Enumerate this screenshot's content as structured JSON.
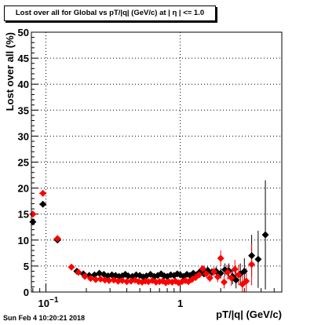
{
  "header": {
    "title": "Lost over all for Global vs pT/|q| (GeV/c) at |  η | <= 1.0"
  },
  "footer": {
    "timestamp": "Sun Feb  4 10:20:21 2018"
  },
  "colors": {
    "series_black": "#000000",
    "series_red": "#ff0000",
    "grid": "#000000",
    "frame": "#000000"
  },
  "chart_data": {
    "type": "scatter",
    "xlabel": "pT/|q| (GeV/c)",
    "ylabel": "Lost over all (%)",
    "xscale": "log",
    "xlim": [
      0.078,
      5.7
    ],
    "ylim": [
      0,
      50
    ],
    "grid": true,
    "x_ticks": [
      {
        "value": 0.1,
        "base": "10",
        "exp": "−1"
      },
      {
        "value": 1,
        "label": "1"
      }
    ],
    "y_ticks": [
      0,
      5,
      10,
      15,
      20,
      25,
      30,
      35,
      40,
      45,
      50
    ],
    "series": [
      {
        "color": "black",
        "points": [
          {
            "x": 0.08,
            "y": 13.5,
            "xerr": 0.003,
            "yerr": 0.5
          },
          {
            "x": 0.095,
            "y": 16.9,
            "xerr": 0.006,
            "yerr": 0.5
          },
          {
            "x": 0.122,
            "y": 10.0,
            "xerr": 0.008,
            "yerr": 0.4
          },
          {
            "x": 0.17,
            "y": 4.0,
            "yerr": 0.3
          },
          {
            "x": 0.19,
            "y": 3.5,
            "yerr": 0.3
          },
          {
            "x": 0.21,
            "y": 3.2,
            "yerr": 0.3
          },
          {
            "x": 0.23,
            "y": 3.3,
            "yerr": 0.3
          },
          {
            "x": 0.25,
            "y": 3.6,
            "yerr": 0.3
          },
          {
            "x": 0.27,
            "y": 3.4,
            "yerr": 0.3
          },
          {
            "x": 0.29,
            "y": 3.1,
            "yerr": 0.3
          },
          {
            "x": 0.31,
            "y": 3.3,
            "yerr": 0.3
          },
          {
            "x": 0.33,
            "y": 3.2,
            "yerr": 0.3
          },
          {
            "x": 0.35,
            "y": 3.0,
            "yerr": 0.3
          },
          {
            "x": 0.37,
            "y": 3.1,
            "yerr": 0.3
          },
          {
            "x": 0.39,
            "y": 3.4,
            "yerr": 0.3
          },
          {
            "x": 0.41,
            "y": 3.1,
            "yerr": 0.3
          },
          {
            "x": 0.44,
            "y": 3.0,
            "yerr": 0.3
          },
          {
            "x": 0.47,
            "y": 3.3,
            "yerr": 0.3
          },
          {
            "x": 0.5,
            "y": 3.2,
            "yerr": 0.3
          },
          {
            "x": 0.53,
            "y": 2.9,
            "yerr": 0.3
          },
          {
            "x": 0.56,
            "y": 3.1,
            "yerr": 0.3
          },
          {
            "x": 0.6,
            "y": 3.4,
            "yerr": 0.3
          },
          {
            "x": 0.64,
            "y": 3.0,
            "yerr": 0.3
          },
          {
            "x": 0.68,
            "y": 3.2,
            "yerr": 0.3
          },
          {
            "x": 0.72,
            "y": 3.5,
            "yerr": 0.3
          },
          {
            "x": 0.76,
            "y": 3.1,
            "yerr": 0.3
          },
          {
            "x": 0.8,
            "y": 3.0,
            "yerr": 0.3
          },
          {
            "x": 0.85,
            "y": 3.3,
            "yerr": 0.3
          },
          {
            "x": 0.9,
            "y": 3.2,
            "yerr": 0.3
          },
          {
            "x": 0.95,
            "y": 3.5,
            "yerr": 0.3
          },
          {
            "x": 1.0,
            "y": 3.3,
            "yerr": 0.4
          },
          {
            "x": 1.06,
            "y": 3.0,
            "yerr": 0.4
          },
          {
            "x": 1.12,
            "y": 3.4,
            "yerr": 0.4
          },
          {
            "x": 1.18,
            "y": 3.2,
            "yerr": 0.4
          },
          {
            "x": 1.25,
            "y": 3.6,
            "yerr": 0.4
          },
          {
            "x": 1.32,
            "y": 3.3,
            "yerr": 0.5
          },
          {
            "x": 1.4,
            "y": 3.9,
            "yerr": 0.5
          },
          {
            "x": 1.5,
            "y": 3.5,
            "yerr": 0.6
          },
          {
            "x": 1.6,
            "y": 4.2,
            "yerr": 0.7
          },
          {
            "x": 1.72,
            "y": 3.8,
            "yerr": 0.8
          },
          {
            "x": 1.85,
            "y": 4.0,
            "yerr": 0.9
          },
          {
            "x": 2.0,
            "y": 3.6,
            "yerr": 1.0
          },
          {
            "x": 2.15,
            "y": 4.3,
            "yerr": 1.2
          },
          {
            "x": 2.3,
            "y": 4.1,
            "yerr": 1.4
          },
          {
            "x": 2.45,
            "y": 3.0,
            "yerr": 1.5
          },
          {
            "x": 2.6,
            "y": 2.3,
            "yerr": 1.6
          },
          {
            "x": 2.8,
            "y": 3.5,
            "yerr": 2.0
          },
          {
            "x": 3.0,
            "y": 4.0,
            "yerr": 2.5
          },
          {
            "x": 3.4,
            "y": 7.0,
            "yerr": 4.0
          },
          {
            "x": 3.8,
            "y": 6.3,
            "yerr": 5.5
          },
          {
            "x": 4.3,
            "y": 11.0,
            "yerr": 10.5
          }
        ]
      },
      {
        "color": "red",
        "points": [
          {
            "x": 0.08,
            "y": 15.0,
            "xerr": 0.003,
            "yerr": 0.5
          },
          {
            "x": 0.095,
            "y": 19.0,
            "xerr": 0.006,
            "yerr": 0.5
          },
          {
            "x": 0.122,
            "y": 10.3,
            "xerr": 0.008,
            "yerr": 0.4
          },
          {
            "x": 0.155,
            "y": 4.8,
            "yerr": 0.3
          },
          {
            "x": 0.175,
            "y": 3.8,
            "yerr": 0.3
          },
          {
            "x": 0.195,
            "y": 3.0,
            "yerr": 0.3
          },
          {
            "x": 0.215,
            "y": 2.6,
            "yerr": 0.3
          },
          {
            "x": 0.235,
            "y": 2.4,
            "yerr": 0.3
          },
          {
            "x": 0.255,
            "y": 2.5,
            "yerr": 0.3
          },
          {
            "x": 0.275,
            "y": 2.3,
            "yerr": 0.3
          },
          {
            "x": 0.295,
            "y": 2.2,
            "yerr": 0.3
          },
          {
            "x": 0.32,
            "y": 2.3,
            "yerr": 0.3
          },
          {
            "x": 0.345,
            "y": 2.1,
            "yerr": 0.3
          },
          {
            "x": 0.37,
            "y": 2.2,
            "yerr": 0.3
          },
          {
            "x": 0.4,
            "y": 2.0,
            "yerr": 0.3
          },
          {
            "x": 0.43,
            "y": 2.1,
            "yerr": 0.3
          },
          {
            "x": 0.46,
            "y": 2.3,
            "yerr": 0.3
          },
          {
            "x": 0.49,
            "y": 2.0,
            "yerr": 0.3
          },
          {
            "x": 0.52,
            "y": 1.9,
            "yerr": 0.3
          },
          {
            "x": 0.55,
            "y": 2.1,
            "yerr": 0.3
          },
          {
            "x": 0.58,
            "y": 2.0,
            "yerr": 0.3
          },
          {
            "x": 0.62,
            "y": 2.2,
            "yerr": 0.3
          },
          {
            "x": 0.66,
            "y": 1.9,
            "yerr": 0.3
          },
          {
            "x": 0.7,
            "y": 2.0,
            "yerr": 0.3
          },
          {
            "x": 0.74,
            "y": 2.1,
            "yerr": 0.3
          },
          {
            "x": 0.78,
            "y": 1.8,
            "yerr": 0.3
          },
          {
            "x": 0.82,
            "y": 2.0,
            "yerr": 0.3
          },
          {
            "x": 0.87,
            "y": 1.9,
            "yerr": 0.3
          },
          {
            "x": 0.92,
            "y": 2.1,
            "yerr": 0.3
          },
          {
            "x": 0.97,
            "y": 1.8,
            "yerr": 0.3
          },
          {
            "x": 1.03,
            "y": 2.0,
            "yerr": 0.4
          },
          {
            "x": 1.09,
            "y": 2.2,
            "yerr": 0.4
          },
          {
            "x": 1.15,
            "y": 2.0,
            "yerr": 0.4
          },
          {
            "x": 1.22,
            "y": 2.4,
            "yerr": 0.4
          },
          {
            "x": 1.3,
            "y": 2.8,
            "yerr": 0.5
          },
          {
            "x": 1.38,
            "y": 3.3,
            "yerr": 0.5
          },
          {
            "x": 1.47,
            "y": 4.5,
            "yerr": 0.6
          },
          {
            "x": 1.56,
            "y": 3.5,
            "yerr": 0.7
          },
          {
            "x": 1.66,
            "y": 2.7,
            "yerr": 0.8
          },
          {
            "x": 1.78,
            "y": 3.9,
            "yerr": 0.9
          },
          {
            "x": 1.9,
            "y": 2.9,
            "yerr": 1.0
          },
          {
            "x": 2.0,
            "y": 6.5,
            "yerr": 1.5
          },
          {
            "x": 2.12,
            "y": 1.9,
            "yerr": 1.2
          },
          {
            "x": 2.25,
            "y": 3.8,
            "yerr": 1.4
          },
          {
            "x": 2.4,
            "y": 2.7,
            "yerr": 1.5
          },
          {
            "x": 2.55,
            "y": 4.4,
            "yerr": 1.8
          },
          {
            "x": 2.72,
            "y": 3.3,
            "yerr": 2.0
          },
          {
            "x": 2.9,
            "y": 1.5,
            "yerr": 2.0
          },
          {
            "x": 3.1,
            "y": 2.1,
            "yerr": 2.5
          },
          {
            "x": 3.4,
            "y": 5.3,
            "yerr": 4.0
          }
        ]
      }
    ]
  }
}
